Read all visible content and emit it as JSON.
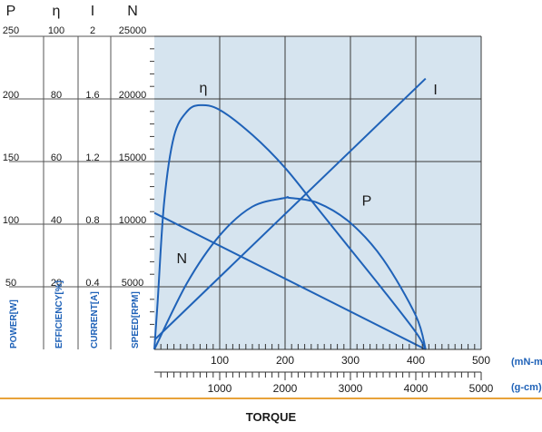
{
  "chart_data": {
    "type": "line",
    "title": "",
    "xlabel": "TORQUE",
    "x_units": [
      "(mN-m)",
      "(g-cm)"
    ],
    "x_axis_mNm": {
      "range": [
        0,
        500
      ],
      "ticks": [
        "100",
        "200",
        "300",
        "400",
        "500"
      ]
    },
    "x_axis_gcm": {
      "range": [
        0,
        5000
      ],
      "ticks": [
        "1000",
        "2000",
        "3000",
        "4000",
        "5000"
      ]
    },
    "y_axes": [
      {
        "symbol": "P",
        "label": "POWER[W]",
        "range": [
          0,
          250
        ],
        "ticks": [
          "50",
          "100",
          "150",
          "200",
          "250"
        ]
      },
      {
        "symbol": "η",
        "label": "EFFICIENCY[%]",
        "range": [
          0,
          100
        ],
        "ticks": [
          "20",
          "40",
          "60",
          "80",
          "100"
        ]
      },
      {
        "symbol": "I",
        "label": "CURRENT[A]",
        "range": [
          0,
          2
        ],
        "ticks": [
          "0.4",
          "0.8",
          "1.2",
          "1.6",
          "2"
        ]
      },
      {
        "symbol": "N",
        "label": "SPEED[RPM]",
        "range": [
          0,
          25000
        ],
        "ticks": [
          "5000",
          "10000",
          "15000",
          "20000",
          "25000"
        ]
      }
    ],
    "grid": true,
    "series": [
      {
        "name": "N",
        "axis": "N",
        "x": [
          0,
          415
        ],
        "values": [
          10900,
          0
        ]
      },
      {
        "name": "I",
        "axis": "I",
        "x": [
          0,
          415
        ],
        "values": [
          0.06,
          1.73
        ]
      },
      {
        "name": "P",
        "axis": "P",
        "x": [
          0,
          50,
          100,
          150,
          200,
          207,
          250,
          300,
          350,
          400,
          415
        ],
        "values": [
          0,
          53,
          91,
          114,
          121,
          121,
          117,
          101,
          72,
          27,
          0
        ]
      },
      {
        "name": "η",
        "axis": "η",
        "x": [
          0,
          5,
          15,
          30,
          50,
          70,
          100,
          150,
          200,
          250,
          300,
          350,
          400,
          415
        ],
        "values": [
          0,
          15,
          47,
          68,
          76,
          78,
          76.5,
          68.5,
          58,
          45,
          32,
          19,
          5.5,
          0
        ]
      }
    ],
    "curve_labels": [
      "η",
      "I",
      "P",
      "N"
    ],
    "colors": {
      "line": "#1f62b8",
      "plot_bg": "#d6e4ef",
      "grid": "#3a3a3a",
      "units": "#1f62b8",
      "rule": "#e8a33a"
    }
  }
}
